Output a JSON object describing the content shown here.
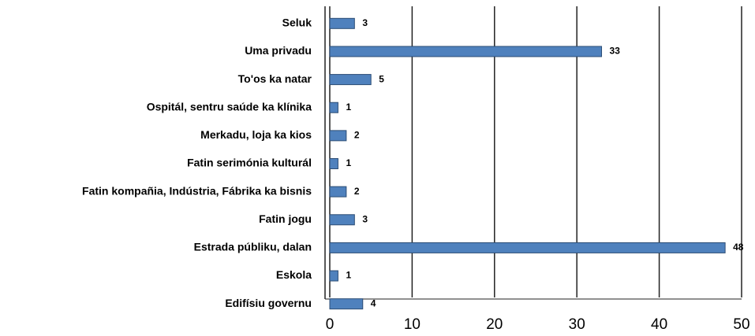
{
  "chart_data": {
    "type": "bar",
    "orientation": "horizontal",
    "categories": [
      "Seluk",
      "Uma privadu",
      "To'os ka natar",
      "Ospitál, sentru saúde ka klínika",
      "Merkadu, loja ka kios",
      "Fatin serimónia kulturál",
      "Fatin kompañia, Indústria, Fábrika ka bisnis",
      "Fatin jogu",
      "Estrada públiku, dalan",
      "Eskola",
      "Edifísiu governu"
    ],
    "values": [
      3,
      33,
      5,
      1,
      2,
      1,
      2,
      3,
      48,
      1,
      4
    ],
    "color": "#4f81bd",
    "xlim": [
      0,
      50
    ],
    "xticks": [
      0,
      10,
      20,
      30,
      40,
      50
    ],
    "grid": true
  }
}
